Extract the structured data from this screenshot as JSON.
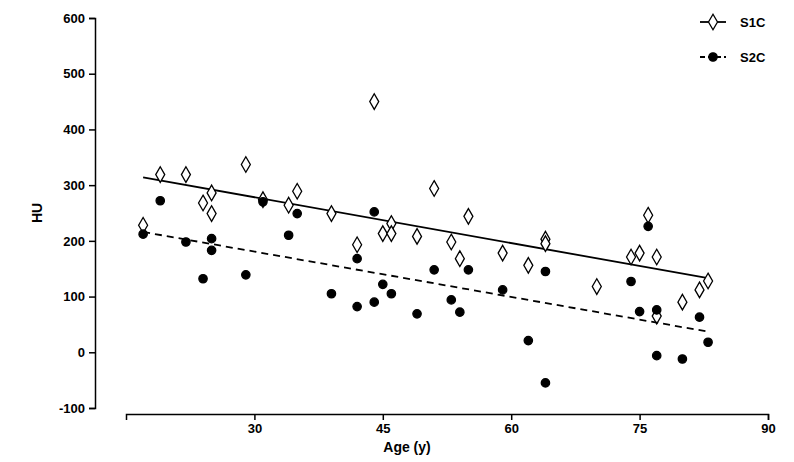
{
  "chart_data": {
    "type": "scatter",
    "x_label": "Age (y)",
    "y_label": "HU",
    "xlim": [
      15,
      90
    ],
    "xticks": [
      30,
      45,
      60,
      75,
      90
    ],
    "ylim": [
      -100,
      600
    ],
    "yticks": [
      -100,
      0,
      100,
      200,
      300,
      400,
      500,
      600
    ],
    "grid": false,
    "legend": "top-right",
    "series": [
      {
        "name": "S1C",
        "color": "#000000",
        "marker": "diamond",
        "line_style": "solid",
        "x": [
          17,
          19,
          22,
          24,
          25,
          25,
          29,
          31,
          34,
          35,
          39,
          42,
          44,
          45,
          46,
          46,
          49,
          51,
          53,
          54,
          55,
          59,
          62,
          64,
          64,
          70,
          74,
          75,
          76,
          77,
          77,
          80,
          82,
          83
        ],
        "values": [
          228,
          319,
          319,
          268,
          286,
          249,
          337,
          274,
          264,
          289,
          249,
          193,
          450,
          213,
          231,
          213,
          208,
          294,
          198,
          168,
          244,
          178,
          156,
          203,
          195,
          118,
          171,
          178,
          246,
          171,
          65,
          90,
          112,
          128
        ],
        "fit": {
          "x": [
            17,
            83
          ],
          "values": [
            314,
            133
          ]
        }
      },
      {
        "name": "S2C",
        "color": "#000000",
        "marker": "circle",
        "line_style": "dashed",
        "x": [
          17,
          19,
          22,
          24,
          25,
          25,
          29,
          31,
          34,
          35,
          39,
          42,
          42,
          44,
          44,
          45,
          46,
          49,
          51,
          53,
          54,
          55,
          59,
          62,
          64,
          64,
          74,
          75,
          76,
          77,
          77,
          80,
          82,
          83
        ],
        "values": [
          212,
          272,
          198,
          132,
          204,
          183,
          139,
          270,
          210,
          249,
          105,
          82,
          168,
          252,
          90,
          122,
          105,
          69,
          148,
          94,
          72,
          148,
          112,
          21,
          145,
          -55,
          127,
          73,
          226,
          76,
          -6,
          -12,
          63,
          18
        ],
        "fit": {
          "x": [
            17,
            83
          ],
          "values": [
            216,
            37
          ]
        }
      }
    ]
  }
}
